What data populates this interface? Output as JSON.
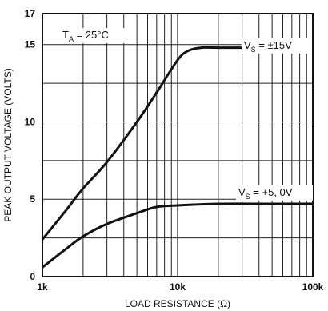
{
  "chart_data": {
    "type": "line",
    "title": "",
    "xlabel": "LOAD RESISTANCE (Ω)",
    "ylabel": "PEAK OUTPUT VOLTAGE (VOLTS)",
    "x_scale": "log",
    "xlim": [
      1000,
      100000
    ],
    "ylim": [
      0,
      17
    ],
    "grid": true,
    "x_ticks": [
      {
        "value": 1000,
        "label": "1k"
      },
      {
        "value": 10000,
        "label": "10k"
      },
      {
        "value": 100000,
        "label": "100k"
      }
    ],
    "y_ticks": [
      {
        "value": 0,
        "label": "0"
      },
      {
        "value": 5,
        "label": "5"
      },
      {
        "value": 10,
        "label": "10"
      },
      {
        "value": 15,
        "label": "15"
      },
      {
        "value": 17,
        "label": "17"
      }
    ],
    "annotations": [
      {
        "main": "T",
        "sub": "A",
        "rest": " = 25°C"
      },
      {
        "main": "V",
        "sub": "S",
        "rest": " = ±15V"
      },
      {
        "main": "V",
        "sub": "S",
        "rest": " = +5, 0V"
      }
    ],
    "series": [
      {
        "points": [
          [
            1000,
            2.4
          ],
          [
            1500,
            4.3
          ],
          [
            2000,
            5.7
          ],
          [
            3000,
            7.4
          ],
          [
            5000,
            10.0
          ],
          [
            7000,
            11.9
          ],
          [
            10000,
            14.0
          ],
          [
            12000,
            14.6
          ],
          [
            15000,
            14.8
          ],
          [
            20000,
            14.8
          ],
          [
            50000,
            14.8
          ],
          [
            100000,
            14.8
          ]
        ]
      },
      {
        "points": [
          [
            1000,
            0.6
          ],
          [
            1500,
            1.8
          ],
          [
            2000,
            2.6
          ],
          [
            3000,
            3.4
          ],
          [
            5000,
            4.1
          ],
          [
            7000,
            4.5
          ],
          [
            10000,
            4.6
          ],
          [
            20000,
            4.7
          ],
          [
            50000,
            4.7
          ],
          [
            100000,
            4.7
          ]
        ]
      }
    ]
  }
}
